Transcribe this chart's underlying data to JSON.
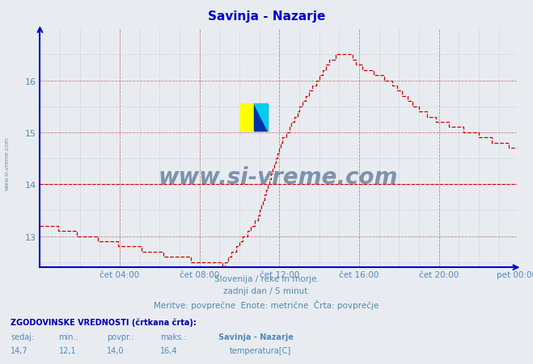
{
  "title": "Savinja - Nazarje",
  "title_color": "#0000cc",
  "bg_color": "#e8ecf0",
  "plot_bg_color": "#e8ecf0",
  "line_color": "#cc0000",
  "avg_line_color": "#cc0000",
  "avg_line_value": 14.0,
  "ylim": [
    12.4,
    17.0
  ],
  "yticks": [
    13,
    14,
    15,
    16
  ],
  "tick_color": "#5588bb",
  "grid_color_major": "#cc8888",
  "grid_color_minor": "#aabbcc",
  "axis_color": "#0000cc",
  "text_below": "Slovenija / reke in morje.\nzadnji dan / 5 minut.\nMeritve: povprečne  Enote: metrične  Črta: povprečje",
  "text_below_color": "#5588aa",
  "footer_bold": "ZGODOVINSKE VREDNOSTI (črtkana črta):",
  "footer_labels": [
    "sedaj:",
    "min.:",
    "povpr.:",
    "maks.:"
  ],
  "footer_values": [
    "14,7",
    "12,1",
    "14,0",
    "16,4"
  ],
  "footer_series": "Savinja - Nazarje",
  "footer_unit": "temperatura[C]",
  "xtick_labels": [
    "čet 04:00",
    "čet 08:00",
    "čet 12:00",
    "čet 16:00",
    "čet 20:00",
    "pet 00:00"
  ],
  "watermark": "www.si-vreme.com",
  "watermark_color": "#1a3a6a",
  "side_watermark": "www.si-vreme.com",
  "side_watermark_color": "#5577aa"
}
